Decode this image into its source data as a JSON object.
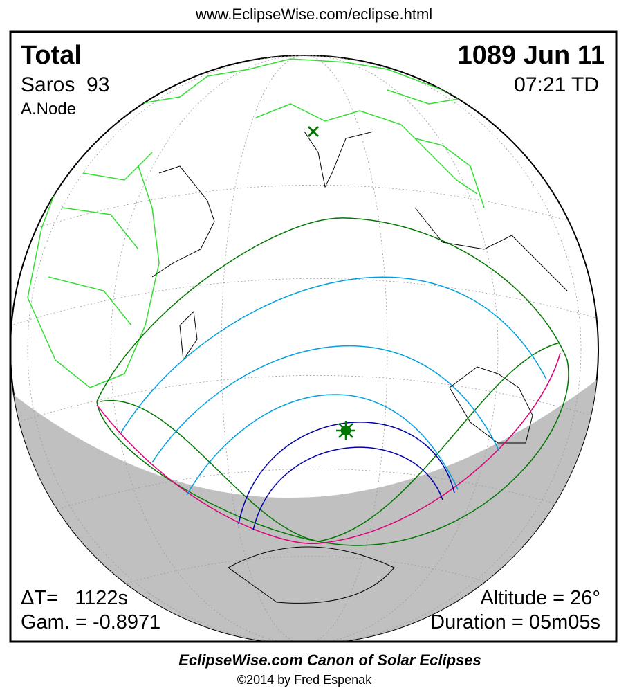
{
  "header": {
    "url": "www.EclipseWise.com/eclipse.html"
  },
  "panel": {
    "eclipse_type": "Total",
    "date": "1089 Jun 11",
    "saros": "Saros  93",
    "time": "07:21 TD",
    "node": "A.Node",
    "delta_t": "ΔT=   1122s",
    "gamma": "Gam. = -0.8971",
    "altitude": "Altitude = 26°",
    "duration": "Duration = 05m05s"
  },
  "footer": {
    "title": "EclipseWise.com Canon of Solar Eclipses",
    "copyright": "©2014 by Fred Espenak"
  }
}
